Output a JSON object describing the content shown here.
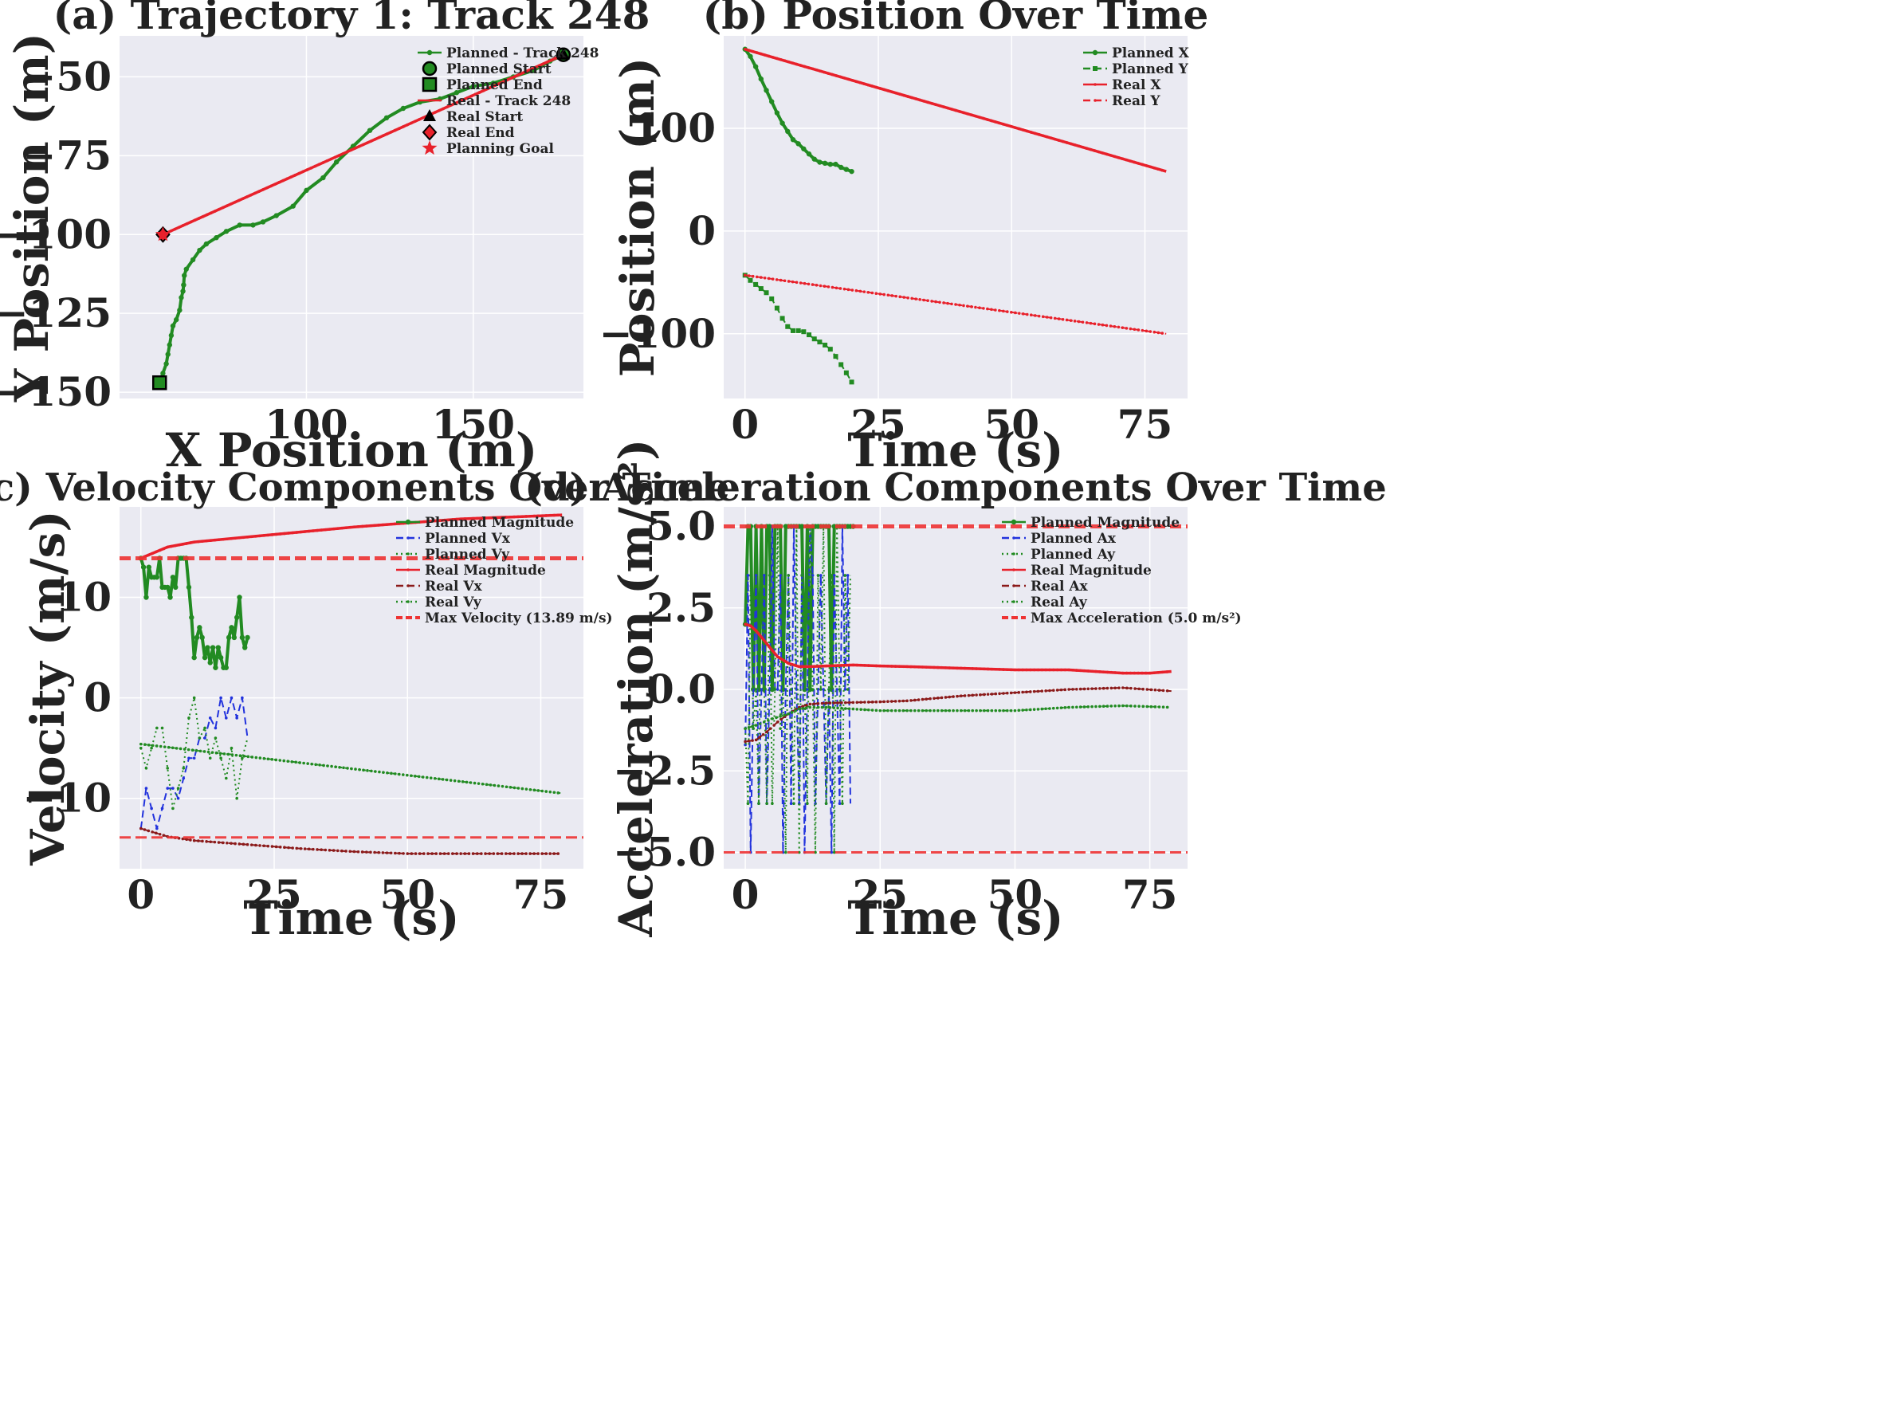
{
  "colors": {
    "panel_bg": "#EAEAF2",
    "grid": "#FFFFFF",
    "green": "#228B22",
    "red": "#E8212B",
    "blue": "#2233DD",
    "darkred": "#8B1A1A",
    "limit": "#EE3333"
  },
  "chart_data": [
    {
      "id": "a",
      "type": "line",
      "title": "(a) Trajectory 1: Track 248",
      "xlabel": "X Position (m)",
      "ylabel": "Y Position (m)",
      "xlim": [
        44,
        183
      ],
      "ylim": [
        -152,
        -37
      ],
      "xticks": [
        100,
        150
      ],
      "yticks": [
        -50,
        -75,
        -100,
        -125,
        -150
      ],
      "legend_loc": "upper-right",
      "series": [
        {
          "name": "Planned - Track 248",
          "color": "green",
          "style": "solid",
          "marker": "dot",
          "x": [
            56,
            57,
            58,
            58.5,
            59,
            59.5,
            60,
            61,
            62,
            62.5,
            63,
            63.2,
            63.4,
            64,
            66,
            68,
            70,
            73,
            76,
            80,
            84,
            87,
            91,
            96,
            100,
            105,
            109,
            114,
            119,
            124,
            129,
            134,
            140,
            145,
            150,
            156,
            162,
            168,
            173,
            177
          ],
          "y": [
            -147,
            -144,
            -141,
            -138,
            -135,
            -132,
            -129,
            -127,
            -124,
            -120,
            -118,
            -116,
            -113,
            -111,
            -108,
            -105,
            -103,
            -101,
            -99,
            -97,
            -97,
            -96,
            -94,
            -91,
            -86,
            -82,
            -77,
            -72,
            -67,
            -63,
            -60,
            -58,
            -57,
            -55,
            -53,
            -52,
            -50,
            -48,
            -45,
            -43
          ]
        },
        {
          "name": "Planned Start",
          "color": "green",
          "marker": "circle",
          "x": [
            177
          ],
          "y": [
            -43
          ]
        },
        {
          "name": "Planned End",
          "color": "green",
          "marker": "square",
          "x": [
            56
          ],
          "y": [
            -147
          ]
        },
        {
          "name": "Real - Track 248",
          "color": "red",
          "style": "solid",
          "marker": "small",
          "x": [
            57,
            177
          ],
          "y": [
            -100,
            -43
          ]
        },
        {
          "name": "Real Start",
          "color": "black",
          "marker": "triangle",
          "x": [
            177
          ],
          "y": [
            -43
          ]
        },
        {
          "name": "Real End",
          "color": "red",
          "marker": "diamond",
          "x": [
            57
          ],
          "y": [
            -100
          ]
        },
        {
          "name": "Planning Goal",
          "color": "red",
          "marker": "star",
          "x": [
            57
          ],
          "y": [
            -100
          ]
        }
      ]
    },
    {
      "id": "b",
      "type": "line",
      "title": "(b) Position Over Time",
      "xlabel": "Time (s)",
      "ylabel": "Position (m)",
      "xlim": [
        -4,
        83
      ],
      "ylim": [
        -163,
        190
      ],
      "xticks": [
        0,
        25,
        50,
        75
      ],
      "yticks": [
        100,
        0,
        -100
      ],
      "legend_loc": "upper-right",
      "series": [
        {
          "name": "Planned X",
          "color": "green",
          "style": "solid",
          "marker": "dot",
          "x": [
            0,
            1,
            2,
            3,
            4,
            5,
            6,
            7,
            8,
            9,
            10,
            11,
            12,
            13,
            14,
            15,
            16,
            17,
            18,
            19,
            20
          ],
          "y": [
            177,
            170,
            160,
            148,
            137,
            126,
            115,
            105,
            97,
            89,
            85,
            80,
            75,
            70,
            67,
            66,
            65,
            65,
            62,
            60,
            58
          ]
        },
        {
          "name": "Planned Y",
          "color": "green",
          "style": "dashed",
          "marker": "square",
          "x": [
            0,
            1,
            2,
            3,
            4,
            5,
            6,
            7,
            8,
            9,
            10,
            11,
            12,
            13,
            14,
            15,
            16,
            17,
            18,
            19,
            20
          ],
          "y": [
            -43,
            -48,
            -52,
            -56,
            -60,
            -66,
            -75,
            -85,
            -93,
            -97,
            -97,
            -98,
            -101,
            -105,
            -108,
            -111,
            -115,
            -122,
            -130,
            -138,
            -147
          ]
        },
        {
          "name": "Real X",
          "color": "red",
          "style": "solid",
          "marker": "small",
          "x": [
            0,
            79
          ],
          "y": [
            177,
            58
          ]
        },
        {
          "name": "Real Y",
          "color": "red",
          "style": "dashed",
          "marker": "small",
          "x": [
            0,
            79
          ],
          "y": [
            -43,
            -100
          ]
        }
      ]
    },
    {
      "id": "c",
      "type": "line",
      "title": "(c) Velocity Components Over Time",
      "xlabel": "Time (s)",
      "ylabel": "Velocity (m/s)",
      "xlim": [
        -4,
        83
      ],
      "ylim": [
        -17,
        19
      ],
      "xticks": [
        0,
        25,
        50,
        75
      ],
      "yticks": [
        10,
        0,
        -10
      ],
      "legend_loc": "upper-right",
      "series": [
        {
          "name": "Planned Magnitude",
          "color": "green",
          "style": "solid",
          "marker": "dot",
          "x": [
            0,
            0.5,
            1,
            1.5,
            2,
            2.5,
            3,
            3.5,
            4,
            4.5,
            5,
            5.5,
            6,
            6.5,
            7,
            7.5,
            8,
            8.5,
            9,
            9.5,
            10,
            10.5,
            11,
            11.5,
            12,
            12.5,
            13,
            13.5,
            14,
            14.5,
            15,
            15.5,
            16,
            16.5,
            17,
            17.5,
            18,
            18.5,
            19,
            19.5,
            20
          ],
          "y": [
            13.89,
            13,
            10,
            13,
            12,
            12,
            12,
            13.89,
            11,
            11,
            11,
            10,
            12,
            11,
            13.89,
            13.89,
            13.89,
            13.89,
            11,
            8,
            4,
            6,
            7,
            6,
            4,
            5,
            3.5,
            5,
            3,
            5,
            4,
            3,
            3,
            6,
            7,
            6,
            8,
            10,
            6,
            5,
            6
          ]
        },
        {
          "name": "Planned Vx",
          "color": "blue",
          "style": "dashed",
          "marker": "small",
          "x": [
            0,
            1,
            2,
            3,
            4,
            5,
            6,
            7,
            8,
            9,
            10,
            11,
            12,
            13,
            14,
            15,
            16,
            17,
            18,
            19,
            20
          ],
          "y": [
            -13,
            -9,
            -11,
            -13,
            -11,
            -9,
            -9,
            -10,
            -8,
            -6,
            -6,
            -4,
            -4,
            -2,
            -3,
            0,
            -2,
            0,
            -2,
            0,
            -4
          ]
        },
        {
          "name": "Planned Vy",
          "color": "green",
          "style": "dotted",
          "marker": "small",
          "x": [
            0,
            1,
            2,
            3,
            4,
            5,
            6,
            7,
            8,
            9,
            10,
            11,
            12,
            13,
            14,
            15,
            16,
            17,
            18,
            19,
            20
          ],
          "y": [
            -5,
            -7,
            -5,
            -3,
            -3,
            -7,
            -11,
            -9,
            -7,
            -2,
            0,
            -4,
            -3,
            -6,
            -4,
            -6,
            -8,
            -5,
            -10,
            -6,
            -4
          ]
        },
        {
          "name": "Real Magnitude",
          "color": "red",
          "style": "solid",
          "marker": "small",
          "x": [
            0,
            5,
            10,
            20,
            30,
            40,
            50,
            60,
            70,
            79
          ],
          "y": [
            13.89,
            15,
            15.5,
            16,
            16.5,
            17,
            17.4,
            17.8,
            18,
            18.2
          ]
        },
        {
          "name": "Real Vx",
          "color": "darkred",
          "style": "dashed",
          "marker": "small",
          "x": [
            0,
            5,
            10,
            20,
            30,
            40,
            50,
            60,
            70,
            79
          ],
          "y": [
            -13,
            -13.8,
            -14.2,
            -14.6,
            -15,
            -15.3,
            -15.5,
            -15.5,
            -15.5,
            -15.5
          ]
        },
        {
          "name": "Real Vy",
          "color": "green",
          "style": "dotted",
          "marker": "small",
          "x": [
            0,
            79
          ],
          "y": [
            -4.6,
            -9.5
          ]
        },
        {
          "name": "Max Velocity (13.89 m/s)",
          "color": "limit",
          "style": "limit",
          "marker": "none",
          "hlines": [
            13.89,
            -13.89
          ]
        }
      ]
    },
    {
      "id": "d",
      "type": "line",
      "title": "(d) Acceleration Components Over Time",
      "xlabel": "Time (s)",
      "ylabel": "Acceleration (m/s²)",
      "xlim": [
        -4,
        82
      ],
      "ylim": [
        -5.5,
        5.6
      ],
      "xticks": [
        0,
        25,
        50,
        75
      ],
      "yticks": [
        5.0,
        2.5,
        0.0,
        -2.5,
        -5.0
      ],
      "legend_loc": "upper-right",
      "series": [
        {
          "name": "Planned Magnitude",
          "color": "green",
          "style": "solid",
          "marker": "dot",
          "x": [
            0,
            0.5,
            1,
            1.5,
            2,
            2.5,
            3,
            3.5,
            4,
            4.5,
            5,
            5.5,
            6,
            6.5,
            7,
            7.5,
            8,
            8.5,
            9,
            9.5,
            10,
            10.5,
            11,
            11.5,
            12,
            12.5,
            13,
            13.5,
            14,
            14.5,
            15,
            15.5,
            16,
            16.5,
            17,
            17.5,
            18,
            18.5,
            19,
            19.5,
            20
          ],
          "y": [
            2,
            5,
            5,
            0,
            5,
            0,
            5,
            0,
            5,
            5,
            0,
            5,
            5,
            5,
            0,
            5,
            5,
            5,
            5,
            5,
            5,
            5,
            0,
            5,
            0,
            5,
            5,
            5,
            5,
            5,
            5,
            5,
            0,
            5,
            5,
            5,
            5,
            5,
            5,
            5,
            5
          ]
        },
        {
          "name": "Planned Ax",
          "color": "blue",
          "style": "dashed",
          "marker": "small",
          "x": [
            0,
            0.5,
            1,
            1.5,
            2,
            2.5,
            3,
            3.5,
            4,
            4.5,
            5,
            5.5,
            6,
            6.5,
            7,
            7.5,
            8,
            8.5,
            9,
            9.5,
            10,
            10.5,
            11,
            11.5,
            12,
            12.5,
            13,
            13.5,
            14,
            14.5,
            15,
            15.5,
            16,
            16.5,
            17,
            17.5,
            18,
            18.5,
            19,
            19.5
          ],
          "y": [
            -1.7,
            3.5,
            -5,
            0,
            3.5,
            -3.5,
            0,
            3.5,
            -3.5,
            0,
            5,
            0,
            0,
            3.5,
            -5,
            0,
            3.5,
            -3.5,
            5,
            0,
            -3.5,
            3.5,
            -5,
            0,
            5,
            3.5,
            -3.5,
            0,
            3.5,
            0,
            -3.5,
            0,
            -5,
            3.5,
            0,
            -3.5,
            5,
            0,
            3.5,
            -3.5
          ]
        },
        {
          "name": "Planned Ay",
          "color": "green",
          "style": "dotted",
          "marker": "small",
          "x": [
            0,
            0.5,
            1,
            1.5,
            2,
            2.5,
            3,
            3.5,
            4,
            4.5,
            5,
            5.5,
            6,
            6.5,
            7,
            7.5,
            8,
            8.5,
            9,
            9.5,
            10,
            10.5,
            11,
            11.5,
            12,
            12.5,
            13,
            13.5,
            14,
            14.5,
            15,
            15.5,
            16,
            16.5,
            17,
            17.5,
            18,
            18.5,
            19,
            19.5
          ],
          "y": [
            -1.2,
            -3.5,
            3.5,
            -1.2,
            0,
            -3.5,
            5,
            0,
            -3.5,
            3.5,
            -3.5,
            0,
            5,
            -1.2,
            0,
            -5,
            3.5,
            0,
            -3.5,
            5,
            -5,
            3.5,
            0,
            -3.5,
            5,
            0,
            -5,
            3.5,
            0,
            5,
            -3.5,
            0,
            3.5,
            -5,
            5,
            0,
            -3.5,
            3.5,
            0,
            3.5
          ]
        },
        {
          "name": "Real Magnitude",
          "color": "red",
          "style": "solid",
          "marker": "small",
          "x": [
            0,
            1,
            2,
            3,
            4,
            5,
            6,
            8,
            10,
            12,
            15,
            20,
            25,
            30,
            40,
            50,
            60,
            70,
            75,
            79
          ],
          "y": [
            2,
            1.95,
            1.8,
            1.6,
            1.4,
            1.2,
            1.0,
            0.8,
            0.7,
            0.7,
            0.72,
            0.75,
            0.72,
            0.7,
            0.65,
            0.6,
            0.6,
            0.5,
            0.5,
            0.55
          ]
        },
        {
          "name": "Real Ax",
          "color": "darkred",
          "style": "dashed",
          "marker": "small",
          "x": [
            0,
            2,
            4,
            6,
            8,
            10,
            12,
            15,
            20,
            25,
            30,
            40,
            50,
            60,
            70,
            79
          ],
          "y": [
            -1.6,
            -1.55,
            -1.3,
            -1.0,
            -0.75,
            -0.55,
            -0.45,
            -0.42,
            -0.4,
            -0.38,
            -0.35,
            -0.2,
            -0.1,
            0.0,
            0.05,
            -0.05
          ]
        },
        {
          "name": "Real Ay",
          "color": "green",
          "style": "dotted",
          "marker": "small",
          "x": [
            0,
            2,
            5,
            8,
            10,
            12,
            15,
            20,
            25,
            30,
            40,
            50,
            60,
            70,
            79
          ],
          "y": [
            -1.2,
            -1.1,
            -0.9,
            -0.75,
            -0.6,
            -0.55,
            -0.55,
            -0.6,
            -0.65,
            -0.65,
            -0.65,
            -0.65,
            -0.55,
            -0.5,
            -0.55
          ]
        },
        {
          "name": "Max Acceleration (5.0 m/s²)",
          "color": "limit",
          "style": "limit",
          "marker": "none",
          "hlines": [
            5.0,
            -5.0
          ]
        }
      ]
    }
  ]
}
